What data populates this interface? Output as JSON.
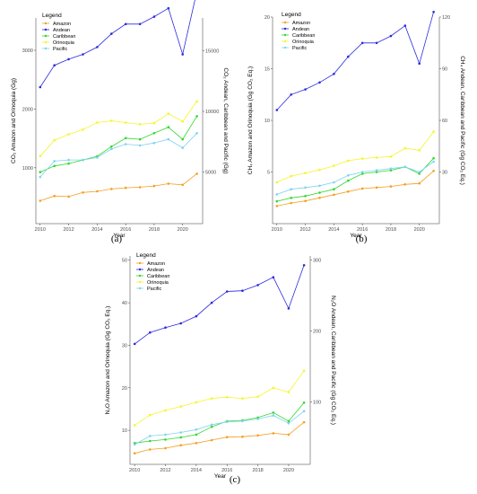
{
  "legend": {
    "title": "Legend",
    "items": [
      "Amazon",
      "Andean",
      "Caribbean",
      "Orinoquia",
      "Pacific"
    ]
  },
  "colors": {
    "Amazon": "#f4a020",
    "Andean": "#2a2ae0",
    "Caribbean": "#2fd82f",
    "Orinoquia": "#f5f52a",
    "Pacific": "#7fd3f0"
  },
  "chart_data": [
    {
      "type": "line",
      "caption": "(a)",
      "xlabel": "Year",
      "ylabel_left": "CO₂ Amazon and Orinoquia (Gg)",
      "ylabel_right": "CO₂ Andean, Caribbean and Pacific (Gg)",
      "xlim": [
        2009.7,
        2021.4
      ],
      "x_ticks": [
        2010,
        2012,
        2014,
        2016,
        2018,
        2020
      ],
      "ylim_left": [
        50,
        3550
      ],
      "y_ticks_left": [
        1000,
        2000,
        3000
      ],
      "ylim_right": [
        750,
        17700
      ],
      "y_ticks_right": [
        5000,
        10000,
        15000
      ],
      "axes": {
        "Amazon": "left",
        "Orinoquia": "left",
        "Andean": "right",
        "Caribbean": "right",
        "Pacific": "right"
      },
      "x": [
        2010,
        2011,
        2012,
        2013,
        2014,
        2015,
        2016,
        2017,
        2018,
        2019,
        2020,
        2021
      ],
      "series": [
        {
          "name": "Amazon",
          "values": [
            440,
            520,
            510,
            580,
            600,
            640,
            660,
            670,
            690,
            730,
            710,
            900
          ]
        },
        {
          "name": "Andean",
          "values": [
            12000,
            13800,
            14300,
            14700,
            15300,
            16400,
            17200,
            17200,
            17800,
            18500,
            14700,
            19900
          ]
        },
        {
          "name": "Caribbean",
          "values": [
            5000,
            5500,
            5700,
            6000,
            6300,
            7100,
            7800,
            7700,
            8200,
            8700,
            7700,
            9600
          ]
        },
        {
          "name": "Orinoquia",
          "values": [
            1200,
            1470,
            1570,
            1650,
            1770,
            1800,
            1770,
            1740,
            1760,
            1920,
            1790,
            2130
          ]
        },
        {
          "name": "Pacific",
          "values": [
            4600,
            5900,
            6000,
            6000,
            6200,
            6900,
            7300,
            7200,
            7400,
            7700,
            7000,
            8200
          ]
        }
      ]
    },
    {
      "type": "line",
      "caption": "(b)",
      "xlabel": "Year",
      "ylabel_left": "CH₄ Amazon and Orinoquia (Gg CO₂ Eq.)",
      "ylabel_right": "CH₄ Andean, Caribbean and Pacific (Gg CO₂ Eq.)",
      "xlim": [
        2009.7,
        2021.4
      ],
      "x_ticks": [
        2010,
        2012,
        2014,
        2016,
        2018,
        2020
      ],
      "ylim_left": [
        0,
        20
      ],
      "y_ticks_left": [
        5,
        10,
        15,
        20
      ],
      "ylim_right": [
        0,
        120
      ],
      "y_ticks_right": [
        30,
        60,
        90,
        120
      ],
      "axes": {
        "Amazon": "left",
        "Orinoquia": "left",
        "Andean": "right",
        "Caribbean": "right",
        "Pacific": "right"
      },
      "x": [
        2010,
        2011,
        2012,
        2013,
        2014,
        2015,
        2016,
        2017,
        2018,
        2019,
        2020,
        2021
      ],
      "series": [
        {
          "name": "Amazon",
          "values": [
            1.7,
            2.0,
            2.2,
            2.5,
            2.8,
            3.1,
            3.4,
            3.5,
            3.6,
            3.8,
            3.9,
            5.1
          ]
        },
        {
          "name": "Andean",
          "values": [
            66,
            75,
            78,
            82,
            87,
            97,
            105,
            105,
            109,
            115,
            93,
            123
          ]
        },
        {
          "name": "Caribbean",
          "values": [
            13,
            15,
            16,
            18,
            20,
            25,
            29,
            30,
            31,
            33,
            29,
            38
          ]
        },
        {
          "name": "Orinoquia",
          "values": [
            4.0,
            4.6,
            4.9,
            5.2,
            5.6,
            6.1,
            6.3,
            6.4,
            6.5,
            7.3,
            7.1,
            8.9
          ]
        },
        {
          "name": "Pacific",
          "values": [
            17,
            20,
            21,
            22,
            24,
            28,
            30,
            31,
            32,
            33,
            30,
            36
          ]
        }
      ]
    },
    {
      "type": "line",
      "caption": "(c)",
      "xlabel": "Year",
      "ylabel_left": "N₂O Amazon and Orinoquia (Gg CO₂ Eq.)",
      "ylabel_right": "N₂O Andean, Caribbean and Pacific (Gg CO₂ Eq.)",
      "xlim": [
        2009.7,
        2021.4
      ],
      "x_ticks": [
        2010,
        2012,
        2014,
        2016,
        2018,
        2020
      ],
      "ylim_left": [
        2,
        51
      ],
      "y_ticks_left": [
        10,
        20,
        30,
        40,
        50
      ],
      "ylim_right": [
        12,
        306
      ],
      "y_ticks_right": [
        100,
        200,
        300
      ],
      "axes": {
        "Amazon": "left",
        "Orinoquia": "left",
        "Andean": "right",
        "Caribbean": "right",
        "Pacific": "right"
      },
      "x": [
        2010,
        2011,
        2012,
        2013,
        2014,
        2015,
        2016,
        2017,
        2018,
        2019,
        2020,
        2021
      ],
      "series": [
        {
          "name": "Amazon",
          "values": [
            4.6,
            5.5,
            5.8,
            6.5,
            7.0,
            7.7,
            8.4,
            8.5,
            8.8,
            9.3,
            9.0,
            11.9
          ]
        },
        {
          "name": "Andean",
          "values": [
            182,
            198,
            205,
            211,
            221,
            240,
            256,
            257,
            265,
            276,
            232,
            293
          ]
        },
        {
          "name": "Caribbean",
          "values": [
            42,
            45,
            47,
            50,
            54,
            65,
            73,
            74,
            78,
            85,
            73,
            99
          ]
        },
        {
          "name": "Orinoquia",
          "values": [
            11.2,
            13.6,
            14.7,
            15.6,
            16.6,
            17.5,
            17.8,
            17.5,
            17.9,
            20.0,
            19.0,
            24.0
          ]
        },
        {
          "name": "Pacific",
          "values": [
            40,
            52,
            54,
            57,
            61,
            68,
            72,
            73,
            76,
            81,
            70,
            87
          ]
        }
      ]
    }
  ]
}
